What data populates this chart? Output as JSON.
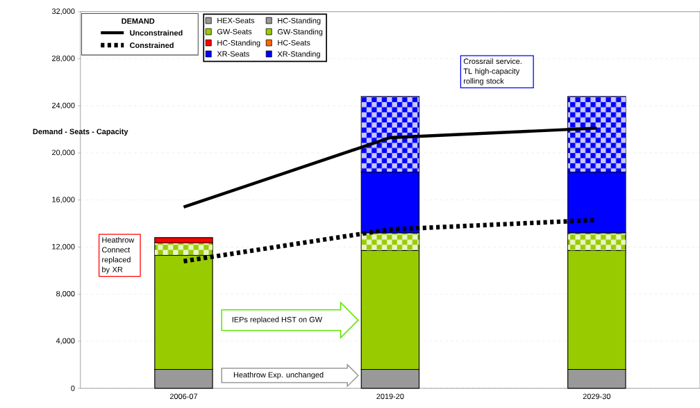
{
  "chart_data": {
    "type": "bar",
    "stacked": true,
    "ylabel": "Demand - Seats - Capacity",
    "legend_title": "DEMAND",
    "categories": [
      "2006-07",
      "2019-20",
      "2029-30"
    ],
    "series": [
      {
        "name": "HEX-Seats",
        "color": "#999999",
        "values": [
          1600,
          1600,
          1600
        ]
      },
      {
        "name": "HC-Standing",
        "color": "#999999",
        "values": [
          null,
          null,
          null
        ]
      },
      {
        "name": "GW-Seats",
        "color": "#99cc00",
        "values": [
          9700,
          10100,
          10100
        ]
      },
      {
        "name": "GW-Standing",
        "color": "#99cc00",
        "values": [
          1050,
          1500,
          1500
        ]
      },
      {
        "name": "HC-Standing",
        "color": "#ff0000",
        "values": [
          450,
          null,
          null
        ]
      },
      {
        "name": "HC-Seats",
        "color": "#ff6600",
        "values": [
          null,
          null,
          null
        ]
      },
      {
        "name": "XR-Seats",
        "color": "#0000ff",
        "values": [
          null,
          5200,
          5200
        ]
      },
      {
        "name": "XR-Standing",
        "color": "#0000ff",
        "values": [
          null,
          6400,
          6400
        ]
      },
      {
        "name": "Unconstrained",
        "type": "line",
        "line_style": "solid",
        "color": "#000000",
        "values": [
          15400,
          21300,
          22100
        ]
      },
      {
        "name": "Constrained",
        "type": "line",
        "line_style": "dotted",
        "color": "#000000",
        "values": [
          10800,
          13500,
          14300
        ]
      }
    ],
    "ylim": [
      0,
      32000
    ],
    "yticks": [
      {
        "value": 0,
        "label": "0"
      },
      {
        "value": 4000,
        "label": "4,000"
      },
      {
        "value": 8000,
        "label": "8,000"
      },
      {
        "value": 12000,
        "label": "12,000"
      },
      {
        "value": 16000,
        "label": "16,000"
      },
      {
        "value": 20000,
        "label": "20,000"
      },
      {
        "value": 24000,
        "label": "24,000"
      },
      {
        "value": 28000,
        "label": "28,000"
      },
      {
        "value": 32000,
        "label": "32,000"
      }
    ],
    "grid": "y",
    "legend": "top",
    "annotations": [
      "Heathrow Connect replaced by XR",
      "IEPs replaced HST on GW",
      "Heathrow Exp. unchanged",
      "Crossrail service. TL high-capacity rolling stock"
    ]
  }
}
